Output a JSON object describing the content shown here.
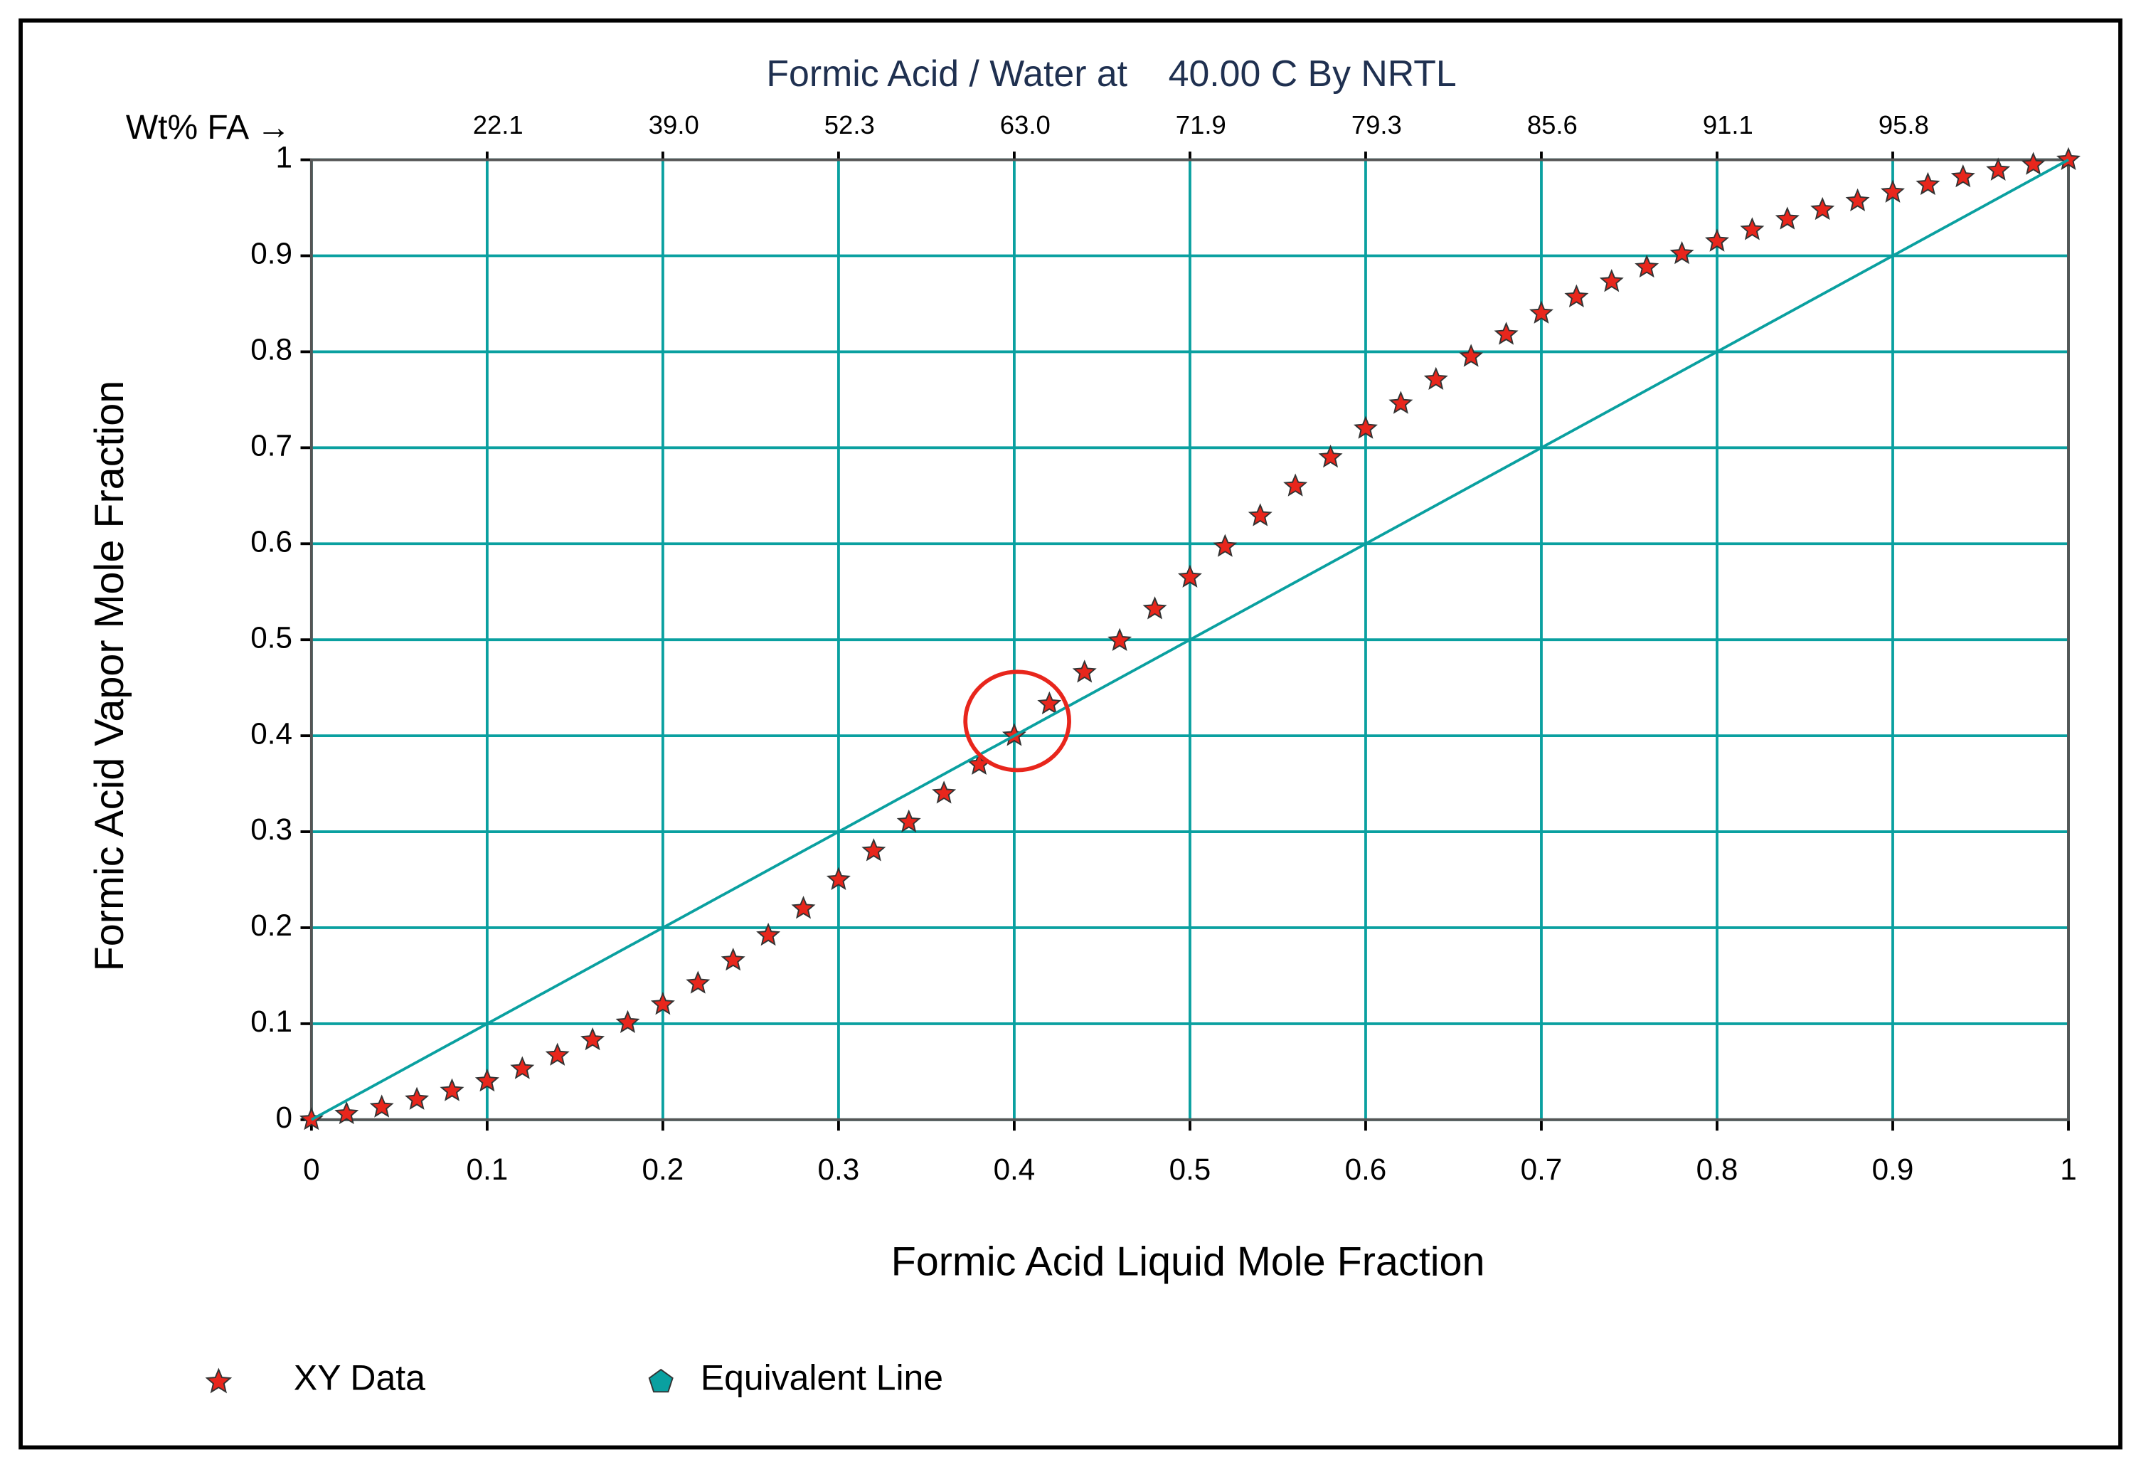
{
  "chart_data": {
    "type": "scatter-line",
    "title": "Formic Acid / Water at    40.00 C By NRTL",
    "xlabel": "Formic Acid Liquid Mole Fraction",
    "ylabel": "Formic Acid Vapor Mole Fraction",
    "x2label": "Wt% FA →",
    "xlim": [
      0,
      1
    ],
    "ylim": [
      0,
      1
    ],
    "xticks": [
      0,
      0.1,
      0.2,
      0.3,
      0.4,
      0.5,
      0.6,
      0.7,
      0.8,
      0.9,
      1
    ],
    "yticks": [
      0,
      0.1,
      0.2,
      0.3,
      0.4,
      0.5,
      0.6,
      0.7,
      0.8,
      0.9,
      1
    ],
    "x2ticks": [
      {
        "value": 0.1,
        "label": "22.1"
      },
      {
        "value": 0.2,
        "label": "39.0"
      },
      {
        "value": 0.3,
        "label": "52.3"
      },
      {
        "value": 0.4,
        "label": "63.0"
      },
      {
        "value": 0.5,
        "label": "71.9"
      },
      {
        "value": 0.6,
        "label": "79.3"
      },
      {
        "value": 0.7,
        "label": "85.6"
      },
      {
        "value": 0.8,
        "label": "91.1"
      },
      {
        "value": 0.9,
        "label": "95.8"
      }
    ],
    "grid": true,
    "grid_color": "#0aa0a0",
    "series": [
      {
        "name": "XY Data",
        "color": "#e8261c",
        "marker": "star",
        "x": [
          0,
          0.02,
          0.04,
          0.06,
          0.08,
          0.1,
          0.12,
          0.14,
          0.16,
          0.18,
          0.2,
          0.22,
          0.24,
          0.26,
          0.28,
          0.3,
          0.32,
          0.34,
          0.36,
          0.38,
          0.4,
          0.42,
          0.44,
          0.46,
          0.48,
          0.5,
          0.52,
          0.54,
          0.56,
          0.58,
          0.6,
          0.62,
          0.64,
          0.66,
          0.68,
          0.7,
          0.72,
          0.74,
          0.76,
          0.78,
          0.8,
          0.82,
          0.84,
          0.86,
          0.88,
          0.9,
          0.92,
          0.94,
          0.96,
          0.98,
          1
        ],
        "values": [
          0,
          0.006,
          0.013,
          0.021,
          0.03,
          0.04,
          0.053,
          0.067,
          0.083,
          0.101,
          0.12,
          0.142,
          0.166,
          0.192,
          0.22,
          0.25,
          0.28,
          0.31,
          0.34,
          0.37,
          0.4,
          0.433,
          0.466,
          0.499,
          0.532,
          0.565,
          0.597,
          0.629,
          0.66,
          0.69,
          0.72,
          0.746,
          0.771,
          0.795,
          0.818,
          0.84,
          0.857,
          0.873,
          0.888,
          0.902,
          0.915,
          0.927,
          0.938,
          0.948,
          0.957,
          0.966,
          0.974,
          0.982,
          0.989,
          0.995,
          1
        ]
      },
      {
        "name": "Equivalent Line",
        "color": "#0aa0a0",
        "marker": "pentagon",
        "x": [
          0,
          1
        ],
        "values": [
          0,
          1
        ]
      }
    ]
  }
}
